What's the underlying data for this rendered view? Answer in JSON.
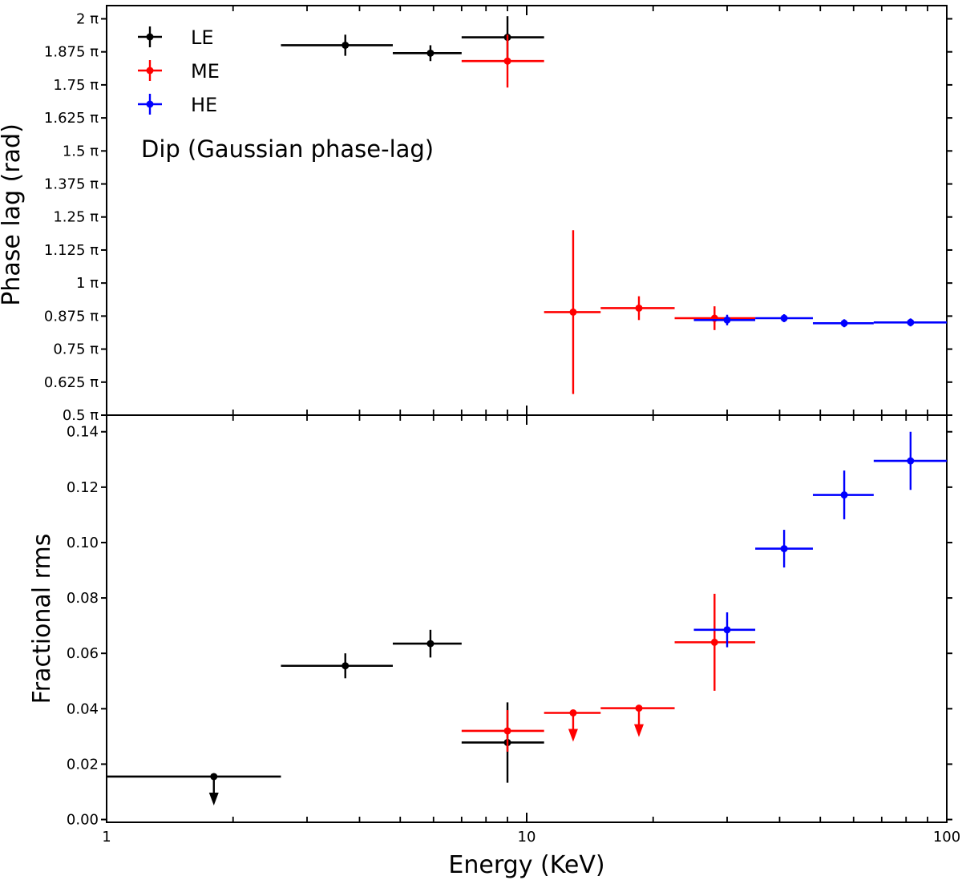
{
  "chart_data": {
    "type": "scatter",
    "title": "",
    "annotation": "Dip (Gaussian phase-lag)",
    "xlabel": "Energy (KeV)",
    "xscale": "log",
    "xlim": [
      1,
      100
    ],
    "x_tick_labels": [
      "1",
      "10",
      "100"
    ],
    "legend": {
      "placement": "top-left",
      "entries": [
        "LE",
        "ME",
        "HE"
      ]
    },
    "colors": {
      "LE": "#000000",
      "ME": "#ff0000",
      "HE": "#0000ff"
    },
    "panels": [
      {
        "name": "phase-lag",
        "ylabel": "Phase lag (rad)",
        "ylim": [
          0.5,
          2.05
        ],
        "y_unit": "pi rad",
        "y_tick_labels": [
          "0.5 π",
          "0.625 π",
          "0.75 π",
          "0.875 π",
          "1 π",
          "1.125 π",
          "1.25 π",
          "1.375 π",
          "1.5 π",
          "1.625 π",
          "1.75 π",
          "1.875 π",
          "2 π"
        ],
        "series": [
          {
            "name": "LE",
            "points": [
              {
                "x": 3.7,
                "xlo": 2.6,
                "xhi": 4.8,
                "y": 1.9,
                "yerr": 0.04
              },
              {
                "x": 5.9,
                "xlo": 4.8,
                "xhi": 7.0,
                "y": 1.87,
                "yerr": 0.03
              },
              {
                "x": 9.0,
                "xlo": 7.0,
                "xhi": 11.0,
                "y": 1.93,
                "yerr": 0.08
              }
            ]
          },
          {
            "name": "ME",
            "points": [
              {
                "x": 9.0,
                "xlo": 7.0,
                "xhi": 11.0,
                "y": 1.84,
                "yerr": 0.1
              },
              {
                "x": 12.9,
                "xlo": 11.0,
                "xhi": 15.0,
                "y": 0.89,
                "yerr": 0.31
              },
              {
                "x": 18.5,
                "xlo": 15.0,
                "xhi": 22.5,
                "y": 0.905,
                "yerr": 0.045
              },
              {
                "x": 28.0,
                "xlo": 22.5,
                "xhi": 35.0,
                "y": 0.867,
                "yerr": 0.045
              }
            ]
          },
          {
            "name": "HE",
            "points": [
              {
                "x": 30.0,
                "xlo": 25.0,
                "xhi": 35.0,
                "y": 0.86,
                "yerr": 0.02
              },
              {
                "x": 41.0,
                "xlo": 35.0,
                "xhi": 48.0,
                "y": 0.867,
                "yerr": 0.015
              },
              {
                "x": 57.0,
                "xlo": 48.0,
                "xhi": 67.0,
                "y": 0.848,
                "yerr": 0.015
              },
              {
                "x": 82.0,
                "xlo": 67.0,
                "xhi": 100.0,
                "y": 0.851,
                "yerr": 0.015
              }
            ]
          }
        ]
      },
      {
        "name": "fractional-rms",
        "ylabel": "Fractional rms",
        "ylim": [
          -0.001,
          0.146
        ],
        "y_tick_labels": [
          "0.00",
          "0.02",
          "0.04",
          "0.06",
          "0.08",
          "0.10",
          "0.12",
          "0.14"
        ],
        "series": [
          {
            "name": "LE",
            "points": [
              {
                "x": 1.8,
                "xlo": 1.0,
                "xhi": 2.6,
                "y": 0.0155,
                "upper_limit": true
              },
              {
                "x": 3.7,
                "xlo": 2.6,
                "xhi": 4.8,
                "y": 0.0555,
                "yerr": 0.0045
              },
              {
                "x": 5.9,
                "xlo": 4.8,
                "xhi": 7.0,
                "y": 0.0635,
                "yerr": 0.005
              },
              {
                "x": 9.0,
                "xlo": 7.0,
                "xhi": 11.0,
                "y": 0.0278,
                "yerr": 0.0145
              }
            ]
          },
          {
            "name": "ME",
            "points": [
              {
                "x": 9.0,
                "xlo": 7.0,
                "xhi": 11.0,
                "y": 0.032,
                "yerr": 0.0075
              },
              {
                "x": 12.9,
                "xlo": 11.0,
                "xhi": 15.0,
                "y": 0.0385,
                "upper_limit": true
              },
              {
                "x": 18.5,
                "xlo": 15.0,
                "xhi": 22.5,
                "y": 0.0402,
                "upper_limit": true
              },
              {
                "x": 28.0,
                "xlo": 22.5,
                "xhi": 35.0,
                "y": 0.064,
                "yerr": 0.0175
              }
            ]
          },
          {
            "name": "HE",
            "points": [
              {
                "x": 30.0,
                "xlo": 25.0,
                "xhi": 35.0,
                "y": 0.0685,
                "yerr": 0.0063
              },
              {
                "x": 41.0,
                "xlo": 35.0,
                "xhi": 48.0,
                "y": 0.0978,
                "yerr": 0.0068
              },
              {
                "x": 57.0,
                "xlo": 48.0,
                "xhi": 67.0,
                "y": 0.1172,
                "yerr": 0.0088
              },
              {
                "x": 82.0,
                "xlo": 67.0,
                "xhi": 100.0,
                "y": 0.1295,
                "yerr": 0.0105
              }
            ]
          }
        ]
      }
    ]
  }
}
